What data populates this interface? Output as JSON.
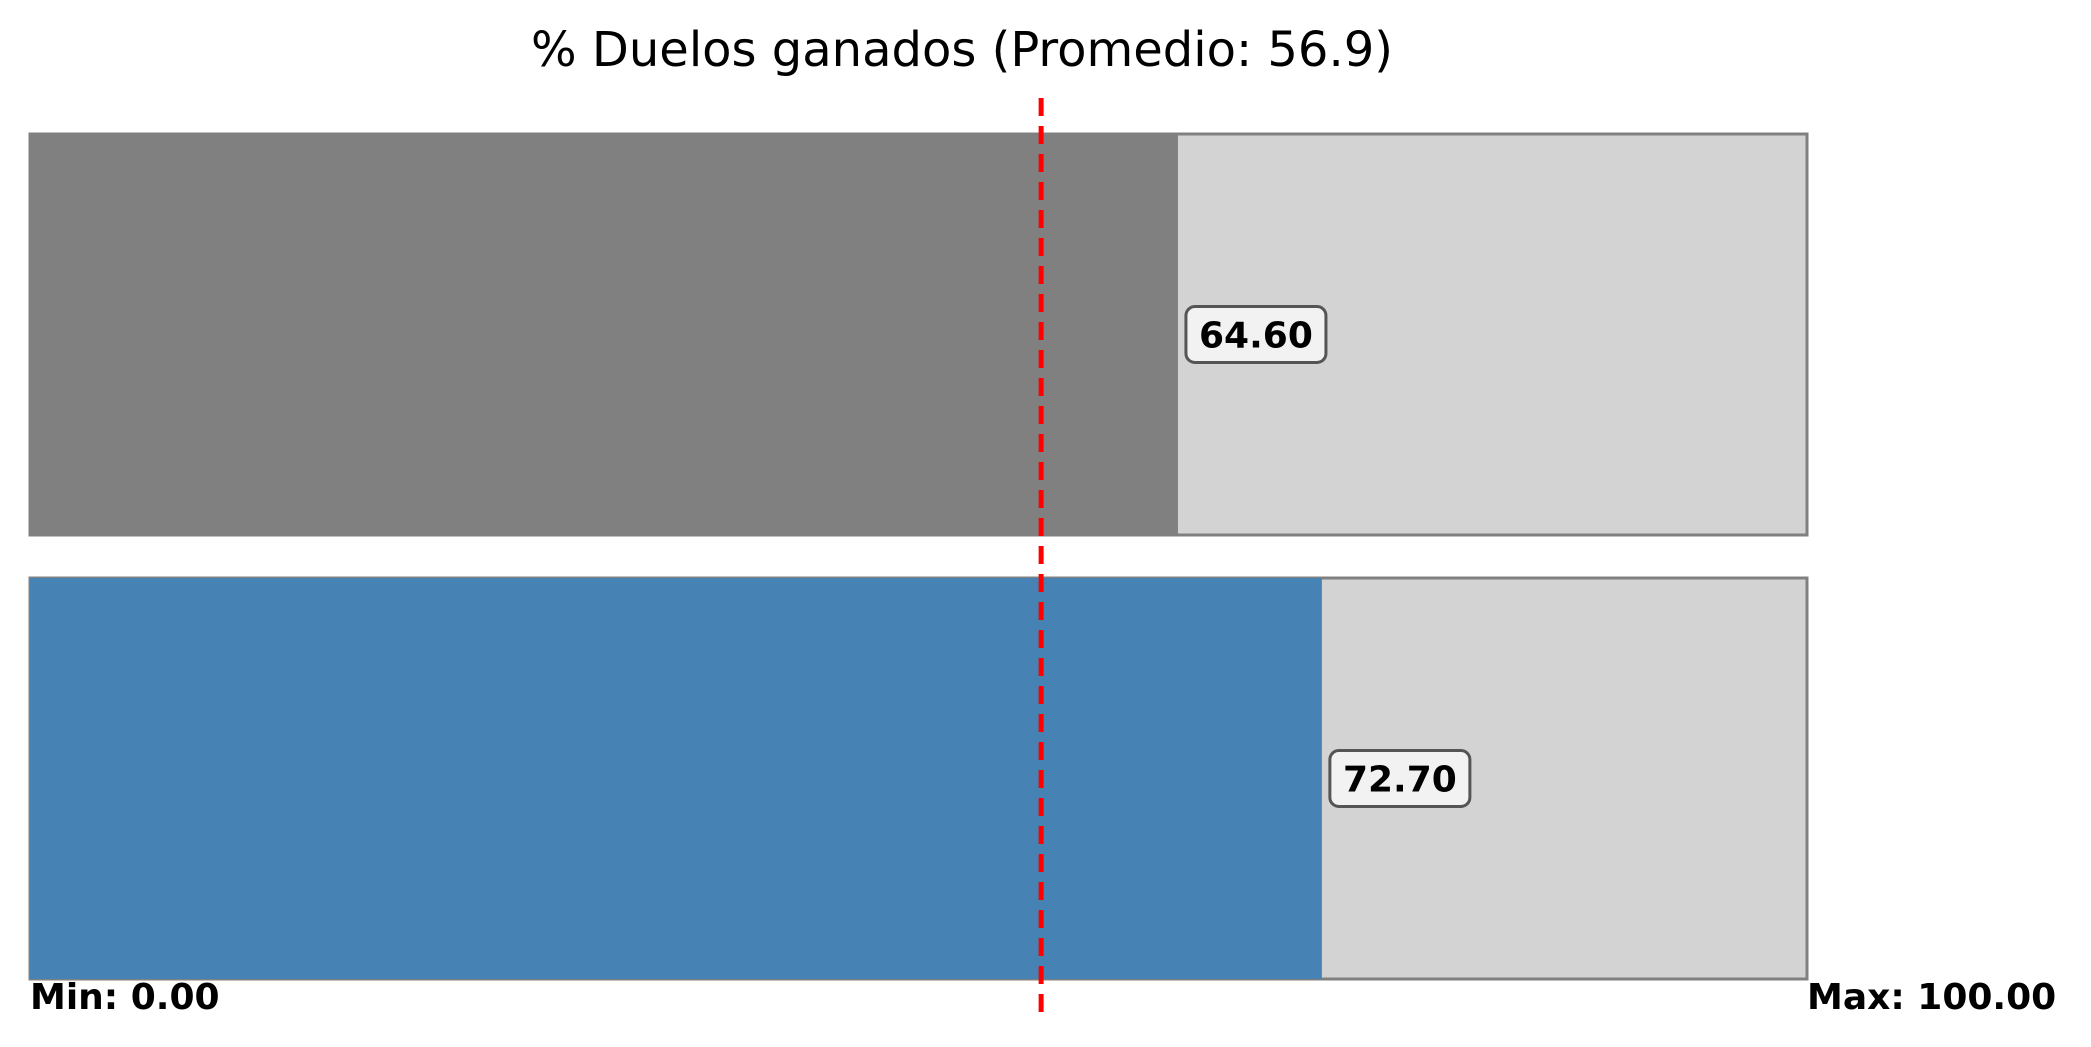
{
  "chart_data": {
    "type": "bar",
    "orientation": "horizontal",
    "title": "% Duelos ganados (Promedio: 56.9)",
    "xlim": [
      0,
      100
    ],
    "average": 56.9,
    "average_line_color": "#ff0000",
    "track_color": "#d3d3d3",
    "track_border_color": "#808080",
    "bars": [
      {
        "value": 64.6,
        "label": "64.60",
        "color": "#808080"
      },
      {
        "value": 72.7,
        "label": "72.70",
        "color": "#4682b4"
      }
    ],
    "min_label": "Min: 0.00",
    "max_label": "Max: 100.00",
    "grid": false,
    "legend": "none"
  }
}
